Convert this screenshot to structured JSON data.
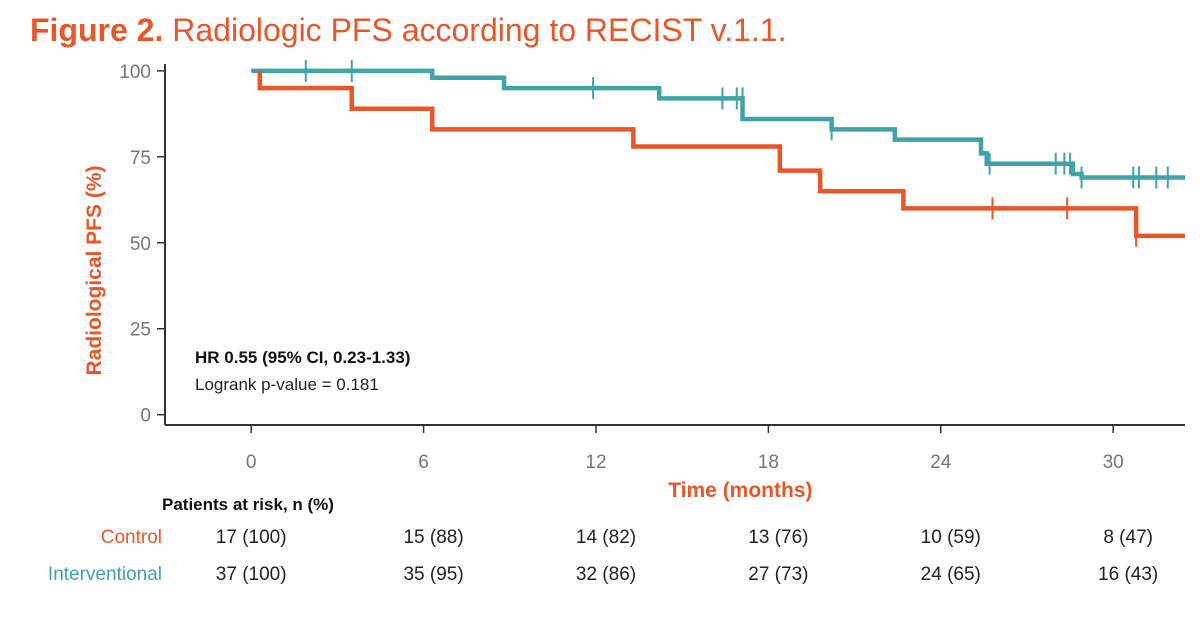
{
  "figure": {
    "label": "Figure 2.",
    "title": "Radiologic PFS according to RECIST v.1.1."
  },
  "colors": {
    "control": "#E8572A",
    "interventional": "#3FA3A7",
    "axis": "#333333",
    "tick_text": "#777777"
  },
  "chart_data": {
    "type": "line",
    "subtype": "kaplan-meier-step",
    "xlabel": "Time (months)",
    "ylabel": "Radiological PFS (%)",
    "xlim": [
      -3,
      32.5
    ],
    "ylim": [
      -3,
      102
    ],
    "xticks": [
      0,
      6,
      12,
      18,
      24,
      30
    ],
    "yticks": [
      0,
      25,
      50,
      75,
      100
    ],
    "annotation": {
      "hr": "HR 0.55 (95% CI, 0.23-1.33)",
      "logrank": "Logrank p-value = 0.181"
    },
    "series": [
      {
        "name": "Interventional",
        "steps": [
          [
            0,
            100
          ],
          [
            6.3,
            98
          ],
          [
            8.8,
            95
          ],
          [
            14.2,
            92
          ],
          [
            17.1,
            86
          ],
          [
            20.2,
            83
          ],
          [
            22.4,
            80
          ],
          [
            25.4,
            76
          ],
          [
            25.6,
            73
          ],
          [
            28.6,
            70
          ],
          [
            28.9,
            69
          ],
          [
            32.5,
            69
          ]
        ],
        "censored": [
          [
            1.9,
            100
          ],
          [
            3.5,
            100
          ],
          [
            11.9,
            95
          ],
          [
            16.4,
            92
          ],
          [
            16.9,
            92
          ],
          [
            17.1,
            92
          ],
          [
            20.2,
            83
          ],
          [
            25.7,
            73
          ],
          [
            28.0,
            73
          ],
          [
            28.3,
            73
          ],
          [
            28.5,
            73
          ],
          [
            28.9,
            69
          ],
          [
            30.7,
            69
          ],
          [
            30.9,
            69
          ],
          [
            31.5,
            69
          ],
          [
            31.9,
            69
          ]
        ]
      },
      {
        "name": "Control",
        "steps": [
          [
            0.3,
            100
          ],
          [
            0.3,
            95
          ],
          [
            3.5,
            89
          ],
          [
            6.3,
            83
          ],
          [
            13.3,
            78
          ],
          [
            18.4,
            71
          ],
          [
            19.8,
            65
          ],
          [
            22.7,
            60
          ],
          [
            30.8,
            52
          ],
          [
            32.5,
            52
          ]
        ],
        "censored": [
          [
            25.8,
            60
          ],
          [
            28.4,
            60
          ],
          [
            30.8,
            52
          ]
        ]
      }
    ],
    "risk_table": {
      "header": "Patients at risk, n (%)",
      "times": [
        0,
        6,
        12,
        18,
        24,
        30
      ],
      "rows": [
        {
          "name": "Control",
          "values": [
            "17 (100)",
            "15 (88)",
            "14 (82)",
            "13 (76)",
            "10 (59)",
            "8 (47)"
          ]
        },
        {
          "name": "Interventional",
          "values": [
            "37 (100)",
            "35 (95)",
            "32 (86)",
            "27 (73)",
            "24 (65)",
            "16 (43)"
          ]
        }
      ]
    }
  }
}
